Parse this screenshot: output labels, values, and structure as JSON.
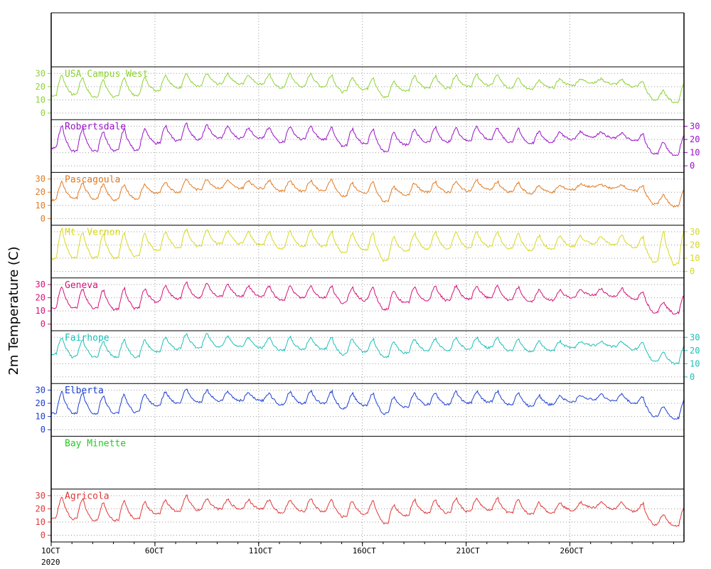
{
  "chart_data": {
    "type": "line",
    "ylabel": "2m Temperature (C)",
    "x_ticks": [
      "1OCT",
      "6OCT",
      "11OCT",
      "16OCT",
      "21OCT",
      "26OCT"
    ],
    "x_year": "2020",
    "xlim": [
      1,
      31.5
    ],
    "ylim": [
      -5,
      35
    ],
    "y_ticks": [
      0,
      10,
      20,
      30
    ],
    "grid": true,
    "series": [
      {
        "name": "USA Campus West",
        "color": "#8ed234",
        "axis_side": "left",
        "x": [
          1,
          2,
          3,
          4,
          5,
          6,
          7,
          8,
          9,
          10,
          11,
          12,
          13,
          14,
          15,
          16,
          17,
          18,
          19,
          20,
          21,
          22,
          23,
          24,
          25,
          26,
          27,
          28,
          29,
          30,
          31
        ],
        "min": [
          13,
          14,
          12,
          12,
          13,
          17,
          19,
          20,
          22,
          22,
          22,
          19,
          20,
          20,
          16,
          18,
          12,
          17,
          19,
          19,
          20,
          21,
          19,
          18,
          19,
          21,
          23,
          22,
          20,
          10,
          8
        ],
        "max": [
          29,
          27,
          25,
          27,
          27,
          29,
          30,
          30,
          30,
          29,
          29,
          30,
          30,
          29,
          27,
          27,
          24,
          28,
          28,
          29,
          29,
          29,
          27,
          25,
          26,
          26,
          26,
          25,
          24,
          17,
          23
        ]
      },
      {
        "name": "Robertsdale",
        "color": "#9a12c8",
        "axis_side": "right",
        "x": [
          1,
          2,
          3,
          4,
          5,
          6,
          7,
          8,
          9,
          10,
          11,
          12,
          13,
          14,
          15,
          16,
          17,
          18,
          19,
          20,
          21,
          22,
          23,
          24,
          25,
          26,
          27,
          28,
          29,
          30,
          31
        ],
        "min": [
          13,
          11,
          11,
          11,
          12,
          17,
          19,
          20,
          21,
          21,
          21,
          18,
          20,
          20,
          15,
          17,
          11,
          16,
          18,
          18,
          19,
          20,
          18,
          17,
          18,
          20,
          22,
          21,
          19,
          9,
          8
        ],
        "max": [
          30,
          28,
          26,
          28,
          28,
          30,
          32,
          31,
          30,
          29,
          29,
          30,
          30,
          29,
          28,
          28,
          25,
          28,
          29,
          29,
          30,
          29,
          28,
          26,
          26,
          26,
          26,
          25,
          24,
          18,
          24
        ]
      },
      {
        "name": "Pascagoula",
        "color": "#e07a22",
        "axis_side": "left",
        "x": [
          1,
          2,
          3,
          4,
          5,
          6,
          7,
          8,
          9,
          10,
          11,
          12,
          13,
          14,
          15,
          16,
          17,
          18,
          19,
          20,
          21,
          22,
          23,
          24,
          25,
          26,
          27,
          28,
          29,
          30,
          31
        ],
        "min": [
          14,
          15,
          15,
          14,
          15,
          19,
          20,
          22,
          23,
          23,
          23,
          21,
          21,
          21,
          17,
          19,
          13,
          18,
          20,
          20,
          21,
          22,
          20,
          19,
          20,
          22,
          24,
          23,
          21,
          11,
          9
        ],
        "max": [
          28,
          27,
          26,
          26,
          26,
          28,
          30,
          30,
          29,
          29,
          29,
          29,
          29,
          30,
          27,
          28,
          24,
          27,
          28,
          28,
          29,
          28,
          27,
          25,
          25,
          26,
          26,
          26,
          25,
          18,
          23
        ]
      },
      {
        "name": "Mt. Vernon",
        "color": "#d8d820",
        "axis_side": "right",
        "x": [
          1,
          2,
          3,
          4,
          5,
          6,
          7,
          8,
          9,
          10,
          11,
          12,
          13,
          14,
          15,
          16,
          17,
          18,
          19,
          20,
          21,
          22,
          23,
          24,
          25,
          26,
          27,
          28,
          29,
          30,
          31
        ],
        "min": [
          9,
          10,
          10,
          10,
          11,
          16,
          18,
          19,
          21,
          21,
          20,
          17,
          19,
          19,
          14,
          16,
          8,
          15,
          17,
          17,
          18,
          19,
          17,
          16,
          17,
          19,
          21,
          20,
          18,
          7,
          5
        ],
        "max": [
          32,
          30,
          28,
          29,
          29,
          30,
          32,
          32,
          31,
          30,
          30,
          31,
          31,
          30,
          29,
          29,
          26,
          29,
          30,
          30,
          30,
          30,
          29,
          27,
          27,
          27,
          27,
          27,
          26,
          30,
          32
        ]
      },
      {
        "name": "Geneva",
        "color": "#d4127a",
        "axis_side": "left",
        "x": [
          1,
          2,
          3,
          4,
          5,
          6,
          7,
          8,
          9,
          10,
          11,
          12,
          13,
          14,
          15,
          16,
          17,
          18,
          19,
          20,
          21,
          22,
          23,
          24,
          25,
          26,
          27,
          28,
          29,
          30,
          31
        ],
        "min": [
          12,
          12,
          12,
          11,
          12,
          17,
          19,
          20,
          21,
          21,
          21,
          18,
          20,
          20,
          16,
          18,
          11,
          16,
          18,
          18,
          19,
          20,
          18,
          17,
          18,
          20,
          22,
          21,
          19,
          9,
          8
        ],
        "max": [
          28,
          27,
          26,
          27,
          27,
          29,
          32,
          31,
          30,
          29,
          29,
          29,
          29,
          29,
          28,
          28,
          25,
          28,
          29,
          29,
          29,
          29,
          28,
          26,
          26,
          26,
          27,
          27,
          25,
          17,
          22
        ]
      },
      {
        "name": "Fairhope",
        "color": "#1cc0b8",
        "axis_side": "right",
        "x": [
          1,
          2,
          3,
          4,
          5,
          6,
          7,
          8,
          9,
          10,
          11,
          12,
          13,
          14,
          15,
          16,
          17,
          18,
          19,
          20,
          21,
          22,
          23,
          24,
          25,
          26,
          27,
          28,
          29,
          30,
          31
        ],
        "min": [
          17,
          15,
          15,
          15,
          15,
          19,
          21,
          22,
          23,
          23,
          22,
          20,
          21,
          21,
          17,
          19,
          15,
          18,
          20,
          20,
          21,
          22,
          20,
          19,
          20,
          22,
          24,
          23,
          21,
          12,
          10
        ],
        "max": [
          30,
          28,
          27,
          28,
          28,
          30,
          33,
          33,
          31,
          30,
          30,
          30,
          30,
          30,
          29,
          29,
          27,
          29,
          29,
          30,
          30,
          30,
          29,
          27,
          27,
          27,
          27,
          27,
          26,
          19,
          24
        ]
      },
      {
        "name": "Elberta",
        "color": "#1c3ed0",
        "axis_side": "left",
        "x": [
          1,
          2,
          3,
          4,
          5,
          6,
          7,
          8,
          9,
          10,
          11,
          12,
          13,
          14,
          15,
          16,
          17,
          18,
          19,
          20,
          21,
          22,
          23,
          24,
          25,
          26,
          27,
          28,
          29,
          30,
          31
        ],
        "min": [
          12,
          12,
          12,
          12,
          13,
          18,
          20,
          21,
          22,
          22,
          22,
          19,
          20,
          20,
          16,
          18,
          12,
          17,
          19,
          19,
          20,
          21,
          19,
          18,
          19,
          21,
          23,
          22,
          20,
          10,
          8
        ],
        "max": [
          29,
          28,
          26,
          27,
          27,
          29,
          31,
          30,
          29,
          28,
          28,
          29,
          29,
          29,
          28,
          28,
          25,
          28,
          28,
          29,
          29,
          29,
          28,
          26,
          26,
          26,
          27,
          27,
          25,
          18,
          23
        ]
      },
      {
        "name": "Bay Minette",
        "color": "#22cc22",
        "axis_side": "right",
        "x": [],
        "min": [],
        "max": []
      },
      {
        "name": "Agricola",
        "color": "#e03838",
        "axis_side": "left",
        "x": [
          1,
          2,
          3,
          4,
          5,
          6,
          7,
          8,
          9,
          10,
          11,
          12,
          13,
          14,
          15,
          16,
          17,
          18,
          19,
          20,
          21,
          22,
          23,
          24,
          25,
          26,
          27,
          28,
          29,
          30,
          31
        ],
        "min": [
          13,
          12,
          11,
          11,
          12,
          16,
          18,
          19,
          20,
          20,
          20,
          17,
          18,
          18,
          14,
          16,
          9,
          15,
          17,
          17,
          18,
          19,
          17,
          16,
          17,
          19,
          21,
          20,
          18,
          8,
          7
        ],
        "max": [
          29,
          28,
          25,
          26,
          25,
          27,
          30,
          28,
          27,
          27,
          27,
          27,
          28,
          27,
          26,
          26,
          23,
          27,
          27,
          28,
          28,
          28,
          27,
          25,
          25,
          25,
          25,
          25,
          24,
          16,
          21
        ]
      }
    ]
  }
}
